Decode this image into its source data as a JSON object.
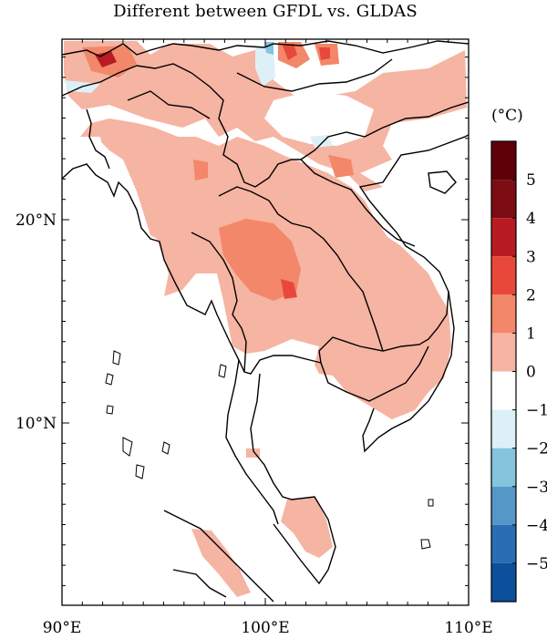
{
  "title": "Different between GFDL vs. GLDAS",
  "x_axis": {
    "ticks": [
      {
        "value": 90,
        "label": "90°E"
      },
      {
        "value": 100,
        "label": "100°E"
      },
      {
        "value": 110,
        "label": "110°E"
      }
    ]
  },
  "y_axis": {
    "ticks": [
      {
        "value": 20,
        "label": "20°N"
      },
      {
        "value": 10,
        "label": "10°N"
      }
    ]
  },
  "colorbar": {
    "unit": "(°C)",
    "ticks": [
      "5",
      "4",
      "3",
      "2",
      "1",
      "0",
      "−1",
      "−2",
      "−3",
      "−4",
      "−5"
    ],
    "colors": [
      "#5e0008",
      "#7c0d14",
      "#b81b21",
      "#e8483a",
      "#f2876a",
      "#f6b4a2",
      "#ffffff",
      "#ddf0f8",
      "#86c3dd",
      "#5498c8",
      "#2a6db2",
      "#0c4f9a"
    ]
  },
  "colors": {
    "frame": "#000000",
    "land_outline": "#000000",
    "warm_light": "#f6b4a2",
    "warm_mid": "#f2876a",
    "warm_strong": "#e8483a",
    "warm_dark": "#b81b21",
    "cool_light": "#ddf0f8",
    "cool_mid": "#86c3dd"
  }
}
